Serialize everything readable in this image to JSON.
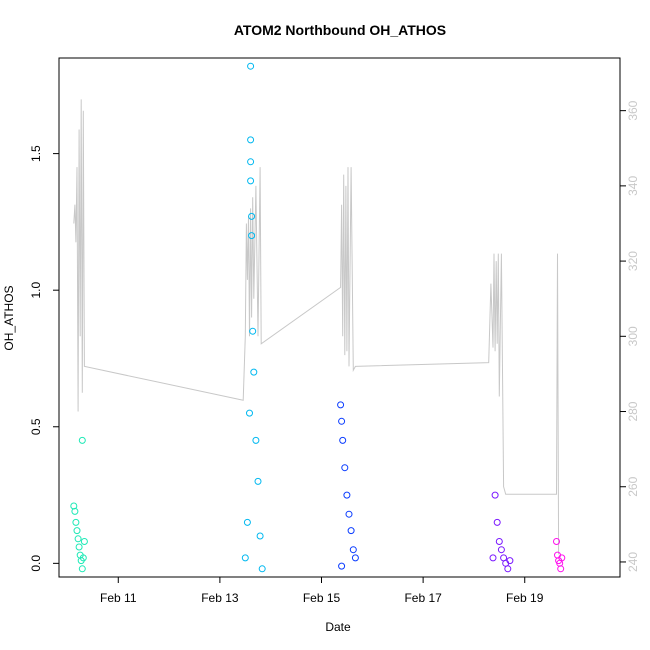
{
  "chart_data": {
    "type": "scatter",
    "title": "ATOM2 Northbound OH_ATHOS",
    "xlabel": "Date",
    "ylabel": "OH_ATHOS",
    "xlim": [
      "2016-02-09T20:00",
      "2016-02-20T21:00"
    ],
    "ylim": [
      -0.05,
      1.85
    ],
    "y_ticks": [
      0.0,
      0.5,
      1.0,
      1.5
    ],
    "y_tick_labels": [
      "0.0",
      "0.5",
      "1.0",
      "1.5"
    ],
    "x_ticks": [
      "2016-02-11",
      "2016-02-13",
      "2016-02-15",
      "2016-02-17",
      "2016-02-19"
    ],
    "x_tick_labels": [
      "Feb 11",
      "Feb 13",
      "Feb 15",
      "Feb 17",
      "Feb 19"
    ],
    "secondary_axis": {
      "ylim": [
        236,
        374
      ],
      "ticks": [
        240,
        260,
        280,
        300,
        320,
        340,
        360
      ],
      "tick_labels": [
        "240",
        "260",
        "280",
        "300",
        "320",
        "340",
        "360"
      ],
      "color": "#c8c8c8"
    },
    "grid": false,
    "series": [
      {
        "color": "#1de9b6",
        "x_range": [
          "2016-02-10T03:00",
          "2016-02-10T08:30"
        ],
        "values": [
          [
            "2016-02-10T03:00",
            0.21
          ],
          [
            "2016-02-10T03:30",
            0.19
          ],
          [
            "2016-02-10T04:00",
            0.15
          ],
          [
            "2016-02-10T04:30",
            0.12
          ],
          [
            "2016-02-10T05:00",
            0.09
          ],
          [
            "2016-02-10T05:30",
            0.06
          ],
          [
            "2016-02-10T06:00",
            0.03
          ],
          [
            "2016-02-10T06:30",
            0.01
          ],
          [
            "2016-02-10T07:00",
            -0.02
          ],
          [
            "2016-02-10T07:30",
            0.02
          ],
          [
            "2016-02-10T08:00",
            0.08
          ],
          [
            "2016-02-10T07:00",
            0.45
          ]
        ]
      },
      {
        "color": "#00b8f0",
        "x_range": [
          "2016-02-13T12:00",
          "2016-02-13T20:00"
        ],
        "values": [
          [
            "2016-02-13T12:00",
            0.02
          ],
          [
            "2016-02-13T13:00",
            0.15
          ],
          [
            "2016-02-13T14:00",
            0.55
          ],
          [
            "2016-02-13T14:30",
            1.82
          ],
          [
            "2016-02-13T14:30",
            1.55
          ],
          [
            "2016-02-13T14:30",
            1.47
          ],
          [
            "2016-02-13T14:30",
            1.4
          ],
          [
            "2016-02-13T15:00",
            1.27
          ],
          [
            "2016-02-13T15:00",
            1.2
          ],
          [
            "2016-02-13T15:30",
            0.85
          ],
          [
            "2016-02-13T16:00",
            0.7
          ],
          [
            "2016-02-13T17:00",
            0.45
          ],
          [
            "2016-02-13T18:00",
            0.3
          ],
          [
            "2016-02-13T19:00",
            0.1
          ],
          [
            "2016-02-13T20:00",
            -0.02
          ]
        ]
      },
      {
        "color": "#0a3cff",
        "x_range": [
          "2016-02-15T09:00",
          "2016-02-15T16:00"
        ],
        "values": [
          [
            "2016-02-15T09:00",
            0.58
          ],
          [
            "2016-02-15T09:30",
            0.52
          ],
          [
            "2016-02-15T10:00",
            0.45
          ],
          [
            "2016-02-15T11:00",
            0.35
          ],
          [
            "2016-02-15T12:00",
            0.25
          ],
          [
            "2016-02-15T13:00",
            0.18
          ],
          [
            "2016-02-15T14:00",
            0.12
          ],
          [
            "2016-02-15T15:00",
            0.05
          ],
          [
            "2016-02-15T16:00",
            0.02
          ],
          [
            "2016-02-15T09:30",
            -0.01
          ]
        ]
      },
      {
        "color": "#7a18ff",
        "x_range": [
          "2016-02-18T09:00",
          "2016-02-18T17:00"
        ],
        "values": [
          [
            "2016-02-18T09:00",
            0.02
          ],
          [
            "2016-02-18T10:00",
            0.25
          ],
          [
            "2016-02-18T11:00",
            0.15
          ],
          [
            "2016-02-18T12:00",
            0.08
          ],
          [
            "2016-02-18T13:00",
            0.05
          ],
          [
            "2016-02-18T14:00",
            0.02
          ],
          [
            "2016-02-18T15:00",
            0.0
          ],
          [
            "2016-02-18T16:00",
            -0.02
          ],
          [
            "2016-02-18T17:00",
            0.01
          ]
        ]
      },
      {
        "color": "#ff10ee",
        "x_range": [
          "2016-02-19T15:00",
          "2016-02-19T18:00"
        ],
        "values": [
          [
            "2016-02-19T15:00",
            0.08
          ],
          [
            "2016-02-19T15:30",
            0.03
          ],
          [
            "2016-02-19T16:00",
            0.01
          ],
          [
            "2016-02-19T16:30",
            0.0
          ],
          [
            "2016-02-19T17:00",
            -0.02
          ],
          [
            "2016-02-19T17:30",
            0.02
          ]
        ]
      },
      {
        "kind": "altitude-line",
        "axis": "secondary",
        "color": "#c8c8c8",
        "values": [
          [
            "2016-02-10T03:00",
            330
          ],
          [
            "2016-02-10T03:30",
            335
          ],
          [
            "2016-02-10T04:00",
            325
          ],
          [
            "2016-02-10T04:30",
            345
          ],
          [
            "2016-02-10T05:00",
            280
          ],
          [
            "2016-02-10T05:30",
            355
          ],
          [
            "2016-02-10T06:00",
            300
          ],
          [
            "2016-02-10T06:30",
            363
          ],
          [
            "2016-02-10T07:00",
            285
          ],
          [
            "2016-02-10T07:30",
            360
          ],
          [
            "2016-02-10T08:00",
            292
          ],
          [
            "2016-02-13T11:00",
            283
          ],
          [
            "2016-02-13T12:00",
            300
          ],
          [
            "2016-02-13T12:30",
            330
          ],
          [
            "2016-02-13T13:00",
            315
          ],
          [
            "2016-02-13T13:30",
            332
          ],
          [
            "2016-02-13T14:00",
            300
          ],
          [
            "2016-02-13T14:30",
            334
          ],
          [
            "2016-02-13T15:00",
            305
          ],
          [
            "2016-02-13T15:30",
            337
          ],
          [
            "2016-02-13T16:00",
            310
          ],
          [
            "2016-02-13T17:00",
            340
          ],
          [
            "2016-02-13T18:00",
            300
          ],
          [
            "2016-02-13T19:00",
            345
          ],
          [
            "2016-02-13T19:30",
            298
          ],
          [
            "2016-02-15T09:00",
            313
          ],
          [
            "2016-02-15T09:30",
            335
          ],
          [
            "2016-02-15T10:00",
            300
          ],
          [
            "2016-02-15T10:30",
            343
          ],
          [
            "2016-02-15T11:00",
            295
          ],
          [
            "2016-02-15T11:30",
            340
          ],
          [
            "2016-02-15T12:00",
            296
          ],
          [
            "2016-02-15T12:30",
            345
          ],
          [
            "2016-02-15T13:00",
            292
          ],
          [
            "2016-02-15T14:00",
            345
          ],
          [
            "2016-02-15T15:00",
            291
          ],
          [
            "2016-02-15T16:00",
            292
          ],
          [
            "2016-02-18T07:00",
            293
          ],
          [
            "2016-02-18T08:00",
            314
          ],
          [
            "2016-02-18T09:00",
            297
          ],
          [
            "2016-02-18T09:30",
            322
          ],
          [
            "2016-02-18T10:00",
            296
          ],
          [
            "2016-02-18T10:30",
            320
          ],
          [
            "2016-02-18T11:00",
            298
          ],
          [
            "2016-02-18T11:30",
            322
          ],
          [
            "2016-02-18T12:00",
            284
          ],
          [
            "2016-02-18T13:00",
            322
          ],
          [
            "2016-02-18T14:00",
            260
          ],
          [
            "2016-02-18T15:00",
            258
          ],
          [
            "2016-02-19T15:00",
            258
          ],
          [
            "2016-02-19T15:30",
            322
          ],
          [
            "2016-02-19T16:00",
            242
          ]
        ]
      }
    ]
  }
}
